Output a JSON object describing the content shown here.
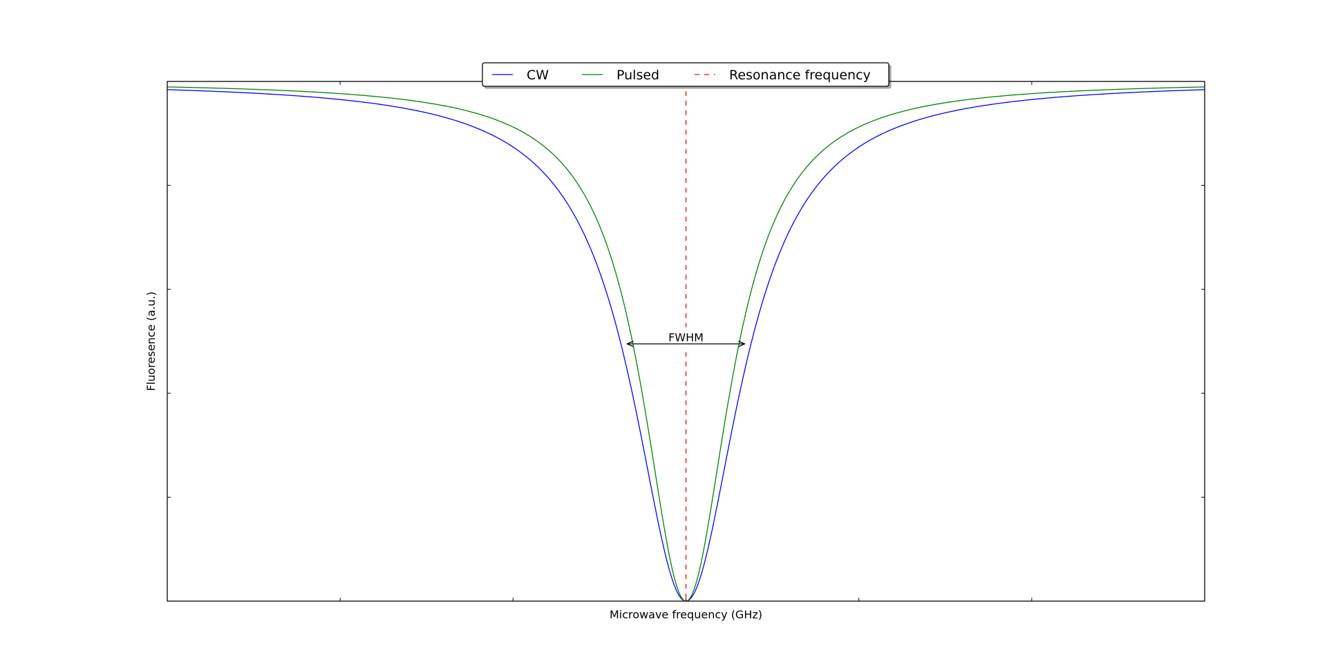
{
  "chart_data": {
    "type": "line",
    "title": "",
    "xlabel": "Microwave frequency (GHz)",
    "ylabel": "Fluoresence (a.u.)",
    "xlim": [
      -3,
      3
    ],
    "ylim": [
      0,
      1
    ],
    "x_ticks": [
      -2,
      -1,
      0,
      1,
      2
    ],
    "y_ticks": [
      0.2,
      0.4,
      0.6,
      0.8
    ],
    "tick_labels_visible": false,
    "grid": false,
    "legend": {
      "placement": "top-center",
      "columns": 3
    },
    "resonance_frequency": 0,
    "series": [
      {
        "name": "CW",
        "color": "#0000ff",
        "style": "solid",
        "center": 0.0,
        "fwhm": 0.76,
        "depth": 1.0
      },
      {
        "name": "Pulsed",
        "color": "#008000",
        "style": "solid",
        "center": 0.0,
        "fwhm": 0.62,
        "depth": 1.0
      },
      {
        "name": "Resonance frequency",
        "color": "#ff0000",
        "style": "dashed",
        "x": 0.0
      }
    ],
    "annotations": [
      {
        "text": "FWHM",
        "type": "double-arrow",
        "x_from": -0.34,
        "x_to": 0.34,
        "y": 0.495
      }
    ]
  }
}
